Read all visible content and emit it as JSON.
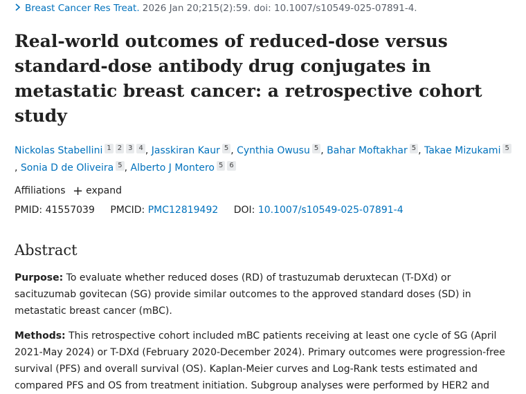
{
  "citation": {
    "chevron_icon": "chevron-right-icon",
    "journal": "Breast Cancer Res Treat.",
    "details": "2026 Jan 20;215(2):59. doi: 10.1007/s10549-025-07891-4."
  },
  "title": "Real-world outcomes of reduced-dose versus standard-dose antibody drug conjugates in metastatic breast cancer: a retrospective cohort study",
  "authors": [
    {
      "name": "Nickolas Stabellini",
      "affs": [
        "1",
        "2",
        "3",
        "4"
      ]
    },
    {
      "name": "Jasskiran Kaur",
      "affs": [
        "5"
      ]
    },
    {
      "name": "Cynthia Owusu",
      "affs": [
        "5"
      ]
    },
    {
      "name": "Bahar Moftakhar",
      "affs": [
        "5"
      ]
    },
    {
      "name": "Takae Mizukami",
      "affs": [
        "5"
      ]
    },
    {
      "name": "Sonia D de Oliveira",
      "affs": [
        "5"
      ]
    },
    {
      "name": "Alberto J Montero",
      "affs": [
        "5",
        "6"
      ]
    }
  ],
  "affiliations": {
    "label": "Affiliations",
    "expand_label": "expand",
    "expand_icon": "plus-icon"
  },
  "ids": {
    "pmid_label": "PMID:",
    "pmid": "41557039",
    "pmcid_label": "PMCID:",
    "pmcid": "PMC12819492",
    "doi_label": "DOI:",
    "doi": "10.1007/s10549-025-07891-4"
  },
  "abstract": {
    "heading": "Abstract",
    "purpose_label": "Purpose:",
    "purpose_text": "To evaluate whether reduced doses (RD) of trastuzumab deruxtecan (T-DXd) or sacituzumab govitecan (SG) provide similar outcomes to the approved standard doses (SD) in metastatic breast cancer (mBC).",
    "methods_label": "Methods:",
    "methods_text": "This retrospective cohort included mBC patients receiving at least one cycle of SG (April 2021-May 2024) or T-DXd (February 2020-December 2024). Primary outcomes were progression-free survival (PFS) and overall survival (OS). Kaplan-Meier curves and Log-Rank tests estimated and compared PFS and OS from treatment initiation. Subgroup analyses were performed by HER2 and"
  }
}
